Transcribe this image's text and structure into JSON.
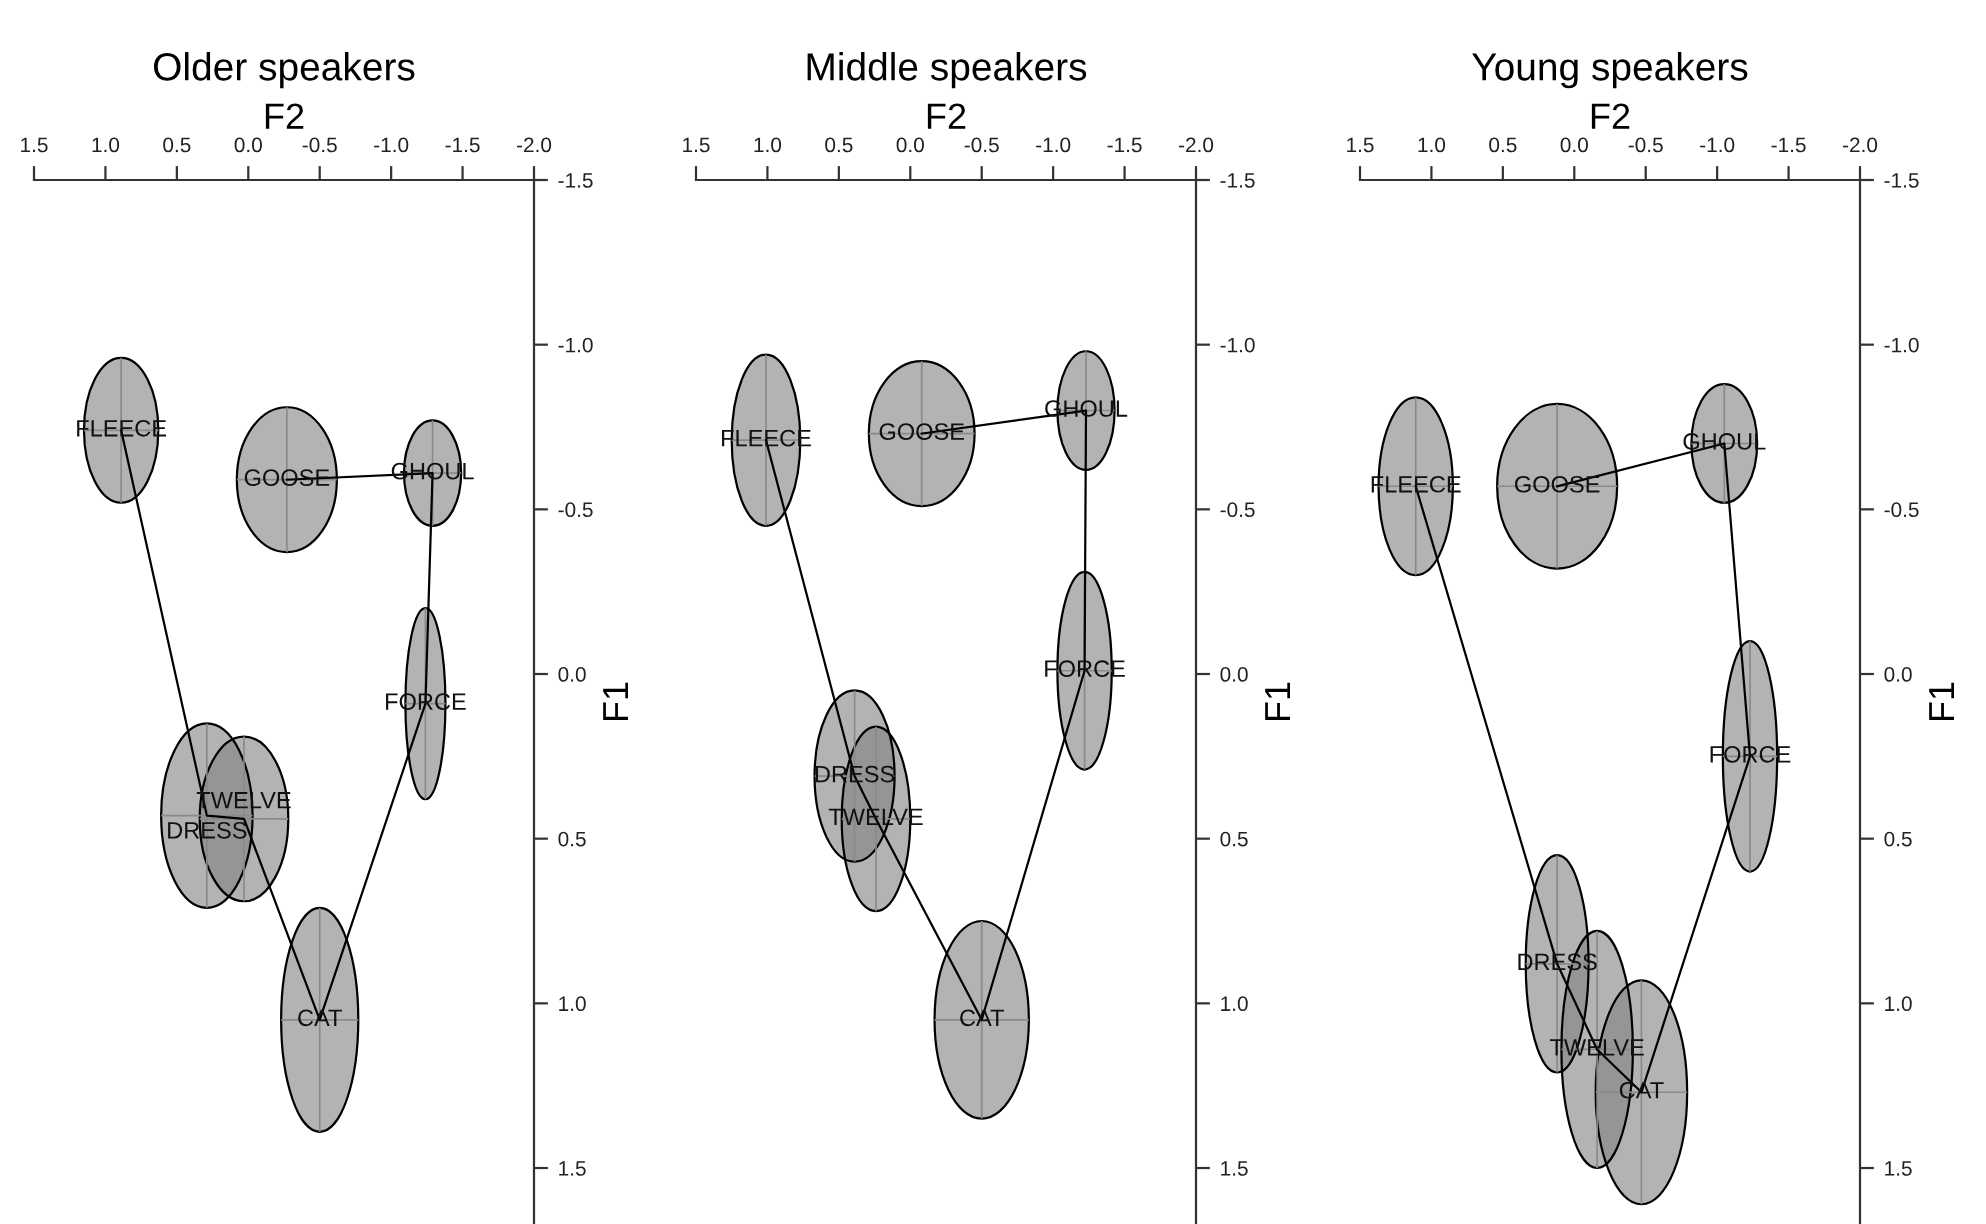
{
  "chart_data": [
    {
      "type": "line",
      "title": "Older speakers",
      "xlabel": "F2",
      "ylabel": "F1",
      "xlim": [
        1.5,
        -2.0
      ],
      "ylim": [
        1.67,
        -1.5
      ],
      "xticks": [
        {
          "value": 1.5,
          "label": "1.5"
        },
        {
          "value": 1.0,
          "label": "1.0"
        },
        {
          "value": 0.5,
          "label": "0.5"
        },
        {
          "value": 0.0,
          "label": "0.0"
        },
        {
          "value": -0.5,
          "label": "-0.5"
        },
        {
          "value": -1.0,
          "label": "-1.0"
        },
        {
          "value": -1.5,
          "label": "-1.5"
        },
        {
          "value": -2.0,
          "label": "-2.0"
        }
      ],
      "yticks": [
        {
          "value": -1.5,
          "label": "-1.5"
        },
        {
          "value": -1.0,
          "label": "-1.0"
        },
        {
          "value": -0.5,
          "label": "-0.5"
        },
        {
          "value": 0.0,
          "label": "0.0"
        },
        {
          "value": 0.5,
          "label": "0.5"
        },
        {
          "value": 1.0,
          "label": "1.0"
        },
        {
          "value": 1.5,
          "label": "1.5"
        }
      ],
      "grid": false,
      "marker": "none",
      "line_style": "solid",
      "series": [
        {
          "color": "#000000",
          "x": [
            0.89,
            0.29,
            0.03,
            -0.5,
            -1.24,
            -1.29,
            -0.27
          ],
          "values": [
            -0.74,
            0.43,
            0.44,
            1.05,
            0.09,
            -0.61,
            -0.59
          ],
          "value_labels": [
            "FLEECE",
            "DRESS",
            "TWELVE",
            "CAT",
            "FORCE",
            "GHOUL",
            "GOOSE"
          ],
          "xerrors": [
            0.26,
            0.32,
            0.31,
            0.27,
            0.14,
            0.2,
            0.35
          ],
          "errors": [
            0.22,
            0.28,
            0.25,
            0.34,
            0.29,
            0.16,
            0.22
          ]
        }
      ]
    },
    {
      "type": "line",
      "title": "Middle speakers",
      "xlabel": "F2",
      "ylabel": "F1",
      "xlim": [
        1.5,
        -2.0
      ],
      "ylim": [
        1.67,
        -1.5
      ],
      "xticks": [
        {
          "value": 1.5,
          "label": "1.5"
        },
        {
          "value": 1.0,
          "label": "1.0"
        },
        {
          "value": 0.5,
          "label": "0.5"
        },
        {
          "value": 0.0,
          "label": "0.0"
        },
        {
          "value": -0.5,
          "label": "-0.5"
        },
        {
          "value": -1.0,
          "label": "-1.0"
        },
        {
          "value": -1.5,
          "label": "-1.5"
        },
        {
          "value": -2.0,
          "label": "-2.0"
        }
      ],
      "yticks": [
        {
          "value": -1.5,
          "label": "-1.5"
        },
        {
          "value": -1.0,
          "label": "-1.0"
        },
        {
          "value": -0.5,
          "label": "-0.5"
        },
        {
          "value": 0.0,
          "label": "0.0"
        },
        {
          "value": 0.5,
          "label": "0.5"
        },
        {
          "value": 1.0,
          "label": "1.0"
        },
        {
          "value": 1.5,
          "label": "1.5"
        }
      ],
      "grid": false,
      "marker": "none",
      "line_style": "solid",
      "series": [
        {
          "color": "#000000",
          "x": [
            1.01,
            0.39,
            0.24,
            -0.5,
            -1.22,
            -1.23,
            -0.08
          ],
          "values": [
            -0.71,
            0.31,
            0.44,
            1.05,
            -0.01,
            -0.8,
            -0.73
          ],
          "value_labels": [
            "FLEECE",
            "DRESS",
            "TWELVE",
            "CAT",
            "FORCE",
            "GHOUL",
            "GOOSE"
          ],
          "xerrors": [
            0.24,
            0.28,
            0.24,
            0.33,
            0.19,
            0.2,
            0.37
          ],
          "errors": [
            0.26,
            0.26,
            0.28,
            0.3,
            0.3,
            0.18,
            0.22
          ]
        }
      ]
    },
    {
      "type": "line",
      "title": "Young speakers",
      "xlabel": "F2",
      "ylabel": "F1",
      "xlim": [
        1.5,
        -2.0
      ],
      "ylim": [
        1.67,
        -1.5
      ],
      "xticks": [
        {
          "value": 1.5,
          "label": "1.5"
        },
        {
          "value": 1.0,
          "label": "1.0"
        },
        {
          "value": 0.5,
          "label": "0.5"
        },
        {
          "value": 0.0,
          "label": "0.0"
        },
        {
          "value": -0.5,
          "label": "-0.5"
        },
        {
          "value": -1.0,
          "label": "-1.0"
        },
        {
          "value": -1.5,
          "label": "-1.5"
        },
        {
          "value": -2.0,
          "label": "-2.0"
        }
      ],
      "yticks": [
        {
          "value": -1.5,
          "label": "-1.5"
        },
        {
          "value": -1.0,
          "label": "-1.0"
        },
        {
          "value": -0.5,
          "label": "-0.5"
        },
        {
          "value": 0.0,
          "label": "0.0"
        },
        {
          "value": 0.5,
          "label": "0.5"
        },
        {
          "value": 1.0,
          "label": "1.0"
        },
        {
          "value": 1.5,
          "label": "1.5"
        }
      ],
      "grid": false,
      "marker": "none",
      "line_style": "solid",
      "series": [
        {
          "color": "#000000",
          "x": [
            1.11,
            0.12,
            -0.16,
            -0.47,
            -1.23,
            -1.05,
            0.12
          ],
          "values": [
            -0.57,
            0.88,
            1.14,
            1.27,
            0.25,
            -0.7,
            -0.57
          ],
          "value_labels": [
            "FLEECE",
            "DRESS",
            "TWELVE",
            "CAT",
            "FORCE",
            "GHOUL",
            "GOOSE"
          ],
          "xerrors": [
            0.26,
            0.22,
            0.25,
            0.32,
            0.19,
            0.23,
            0.42
          ],
          "errors": [
            0.27,
            0.33,
            0.36,
            0.34,
            0.35,
            0.18,
            0.25
          ]
        }
      ]
    }
  ]
}
